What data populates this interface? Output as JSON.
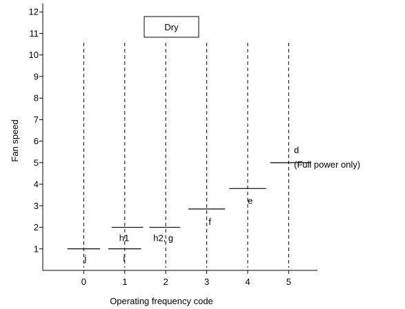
{
  "chart_data": {
    "type": "line",
    "title": "Dry",
    "xlabel": "Operating frequency code",
    "ylabel": "Fan speed",
    "x_ticks": [
      0,
      1,
      2,
      3,
      4,
      5
    ],
    "y_ticks": [
      1,
      2,
      3,
      4,
      5,
      6,
      7,
      8,
      9,
      10,
      11,
      12
    ],
    "xlim": [
      -1,
      5.7
    ],
    "ylim": [
      0,
      12.2
    ],
    "grid": false,
    "guide_lines": [
      0,
      1,
      2,
      3,
      4,
      5
    ],
    "levels": [
      {
        "label": "j",
        "x_start": -0.4,
        "x_end": 0.4,
        "y": 1.0
      },
      {
        "label": "i",
        "x_start": 0.6,
        "x_end": 1.4,
        "y": 1.0
      },
      {
        "label": "h1",
        "x_start": 0.68,
        "x_end": 1.45,
        "y": 2.0
      },
      {
        "label": "h2, g",
        "x_start": 1.6,
        "x_end": 2.35,
        "y": 2.0
      },
      {
        "label": "f",
        "x_start": 2.55,
        "x_end": 3.45,
        "y": 2.85
      },
      {
        "label": "e",
        "x_start": 3.55,
        "x_end": 4.45,
        "y": 3.8
      },
      {
        "label": "d",
        "x_start": 4.55,
        "x_end": 5.55,
        "y": 5.0,
        "note": "(Full power only)"
      }
    ]
  }
}
